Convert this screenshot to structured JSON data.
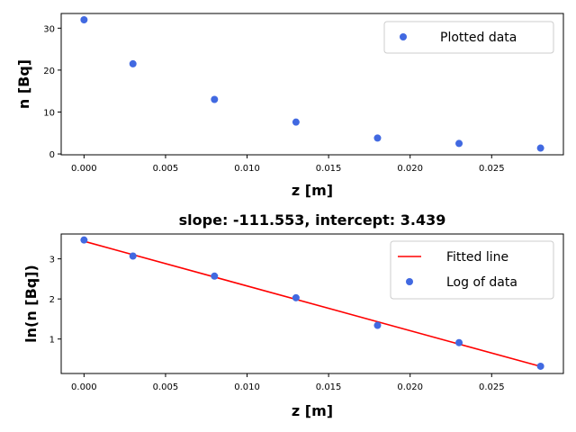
{
  "chart_data": [
    {
      "type": "scatter",
      "title": "",
      "xlabel": "z [m]",
      "ylabel": "n [Bq]",
      "xlim": [
        -0.0014,
        0.0294
      ],
      "ylim": [
        -0.2,
        33.5
      ],
      "xticks": [
        0.0,
        0.005,
        0.01,
        0.015,
        0.02,
        0.025
      ],
      "xtick_labels": [
        "0.000",
        "0.005",
        "0.010",
        "0.015",
        "0.020",
        "0.025"
      ],
      "yticks": [
        0,
        10,
        20,
        30
      ],
      "ytick_labels": [
        "0",
        "10",
        "20",
        "30"
      ],
      "legend_position": "top-right",
      "grid": false,
      "series": [
        {
          "name": "Plotted data",
          "kind": "scatter",
          "color": "#4169e1",
          "x": [
            0.0,
            0.003,
            0.008,
            0.013,
            0.018,
            0.023,
            0.028
          ],
          "y": [
            32.0,
            21.5,
            13.0,
            7.6,
            3.8,
            2.5,
            1.4
          ]
        }
      ]
    },
    {
      "type": "line",
      "title": "slope: -111.553, intercept: 3.439",
      "xlabel": "z [m]",
      "ylabel": "ln(n [Bq])",
      "xlim": [
        -0.0014,
        0.0294
      ],
      "ylim": [
        0.14,
        3.62
      ],
      "xticks": [
        0.0,
        0.005,
        0.01,
        0.015,
        0.02,
        0.025
      ],
      "xtick_labels": [
        "0.000",
        "0.005",
        "0.010",
        "0.015",
        "0.020",
        "0.025"
      ],
      "yticks": [
        1,
        2,
        3
      ],
      "ytick_labels": [
        "1",
        "2",
        "3"
      ],
      "legend_position": "top-right",
      "grid": false,
      "series": [
        {
          "name": "Fitted line",
          "kind": "line",
          "color": "#ff0000",
          "x": [
            0.0,
            0.028
          ],
          "y": [
            3.439,
            0.316
          ]
        },
        {
          "name": "Log of data",
          "kind": "scatter",
          "color": "#4169e1",
          "x": [
            0.0,
            0.003,
            0.008,
            0.013,
            0.018,
            0.023,
            0.028
          ],
          "y": [
            3.47,
            3.07,
            2.57,
            2.03,
            1.34,
            0.91,
            0.32
          ]
        }
      ]
    }
  ]
}
